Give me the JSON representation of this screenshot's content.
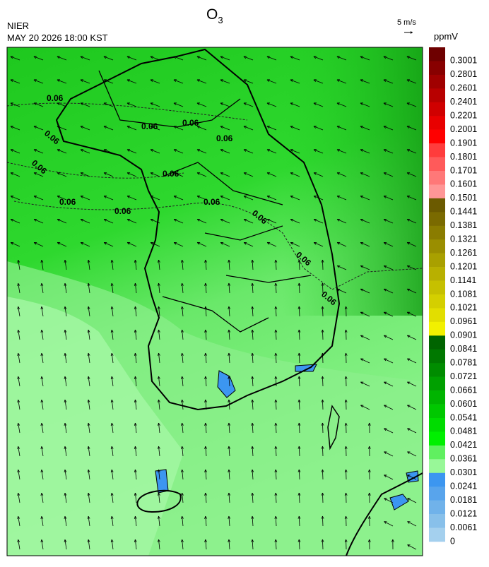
{
  "header": {
    "title_base": "O",
    "title_sub": "3",
    "agency": "NIER",
    "timestamp": "MAY 20 2026 18:00 KST",
    "wind_scale": "5 m/s"
  },
  "colorbar": {
    "unit": "ppmV",
    "levels": [
      {
        "label": "0.3001",
        "color": "#6e0000"
      },
      {
        "label": "0.2801",
        "color": "#880000"
      },
      {
        "label": "0.2601",
        "color": "#a00000"
      },
      {
        "label": "0.2401",
        "color": "#b80000"
      },
      {
        "label": "0.2201",
        "color": "#d00000"
      },
      {
        "label": "0.2001",
        "color": "#e80000"
      },
      {
        "label": "0.1901",
        "color": "#ff0000"
      },
      {
        "label": "0.1801",
        "color": "#ff3c3c"
      },
      {
        "label": "0.1701",
        "color": "#ff5a5a"
      },
      {
        "label": "0.1601",
        "color": "#ff7878"
      },
      {
        "label": "0.1501",
        "color": "#ff9696"
      },
      {
        "label": "0.1441",
        "color": "#6b5a00"
      },
      {
        "label": "0.1381",
        "color": "#7a6a00"
      },
      {
        "label": "0.1321",
        "color": "#8a7c00"
      },
      {
        "label": "0.1261",
        "color": "#9a8e00"
      },
      {
        "label": "0.1201",
        "color": "#a9a000"
      },
      {
        "label": "0.1141",
        "color": "#b8b000"
      },
      {
        "label": "0.1081",
        "color": "#c6c000"
      },
      {
        "label": "0.1021",
        "color": "#d4cf00"
      },
      {
        "label": "0.0961",
        "color": "#e2de00"
      },
      {
        "label": "0.0901",
        "color": "#f2f000"
      },
      {
        "label": "0.0841",
        "color": "#006400"
      },
      {
        "label": "0.0781",
        "color": "#007800"
      },
      {
        "label": "0.0721",
        "color": "#008c00"
      },
      {
        "label": "0.0661",
        "color": "#00a000"
      },
      {
        "label": "0.0601",
        "color": "#00b400"
      },
      {
        "label": "0.0541",
        "color": "#00c800"
      },
      {
        "label": "0.0481",
        "color": "#00dc00"
      },
      {
        "label": "0.0421",
        "color": "#00f000"
      },
      {
        "label": "0.0361",
        "color": "#60f060"
      },
      {
        "label": "0.0301",
        "color": "#98f898"
      },
      {
        "label": "0.0241",
        "color": "#3c96f0"
      },
      {
        "label": "0.0181",
        "color": "#58a4ec"
      },
      {
        "label": "0.0121",
        "color": "#70b2ea"
      },
      {
        "label": "0.0061",
        "color": "#88c0ea"
      },
      {
        "label": "0",
        "color": "#a4d0ee"
      }
    ]
  },
  "contour_labels": [
    "0.06",
    "0.06",
    "0.06",
    "0.06",
    "0.06",
    "0.06",
    "0.06",
    "0.06",
    "0.06",
    "0.06",
    "0.06",
    "0.06",
    "0.06"
  ]
}
